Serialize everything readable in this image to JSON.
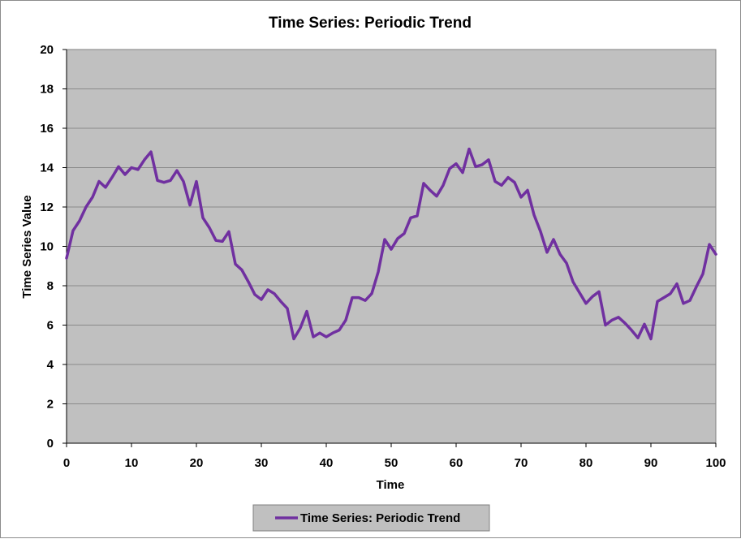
{
  "chart_data": {
    "type": "line",
    "title": "Time Series: Periodic Trend",
    "xlabel": "Time",
    "ylabel": "Time Series Value",
    "xlim": [
      0,
      100
    ],
    "ylim": [
      0,
      20
    ],
    "x_ticks": [
      0,
      10,
      20,
      30,
      40,
      50,
      60,
      70,
      80,
      90,
      100
    ],
    "y_ticks": [
      0,
      2,
      4,
      6,
      8,
      10,
      12,
      14,
      16,
      18,
      20
    ],
    "grid": "horizontal",
    "plot_background": "#c0c0c0",
    "legend_position": "bottom",
    "series": [
      {
        "name": "Time Series: Periodic Trend",
        "color": "#7030a0",
        "x": [
          0,
          1,
          2,
          3,
          4,
          5,
          6,
          7,
          8,
          9,
          10,
          11,
          12,
          13,
          14,
          15,
          16,
          17,
          18,
          19,
          20,
          21,
          22,
          23,
          24,
          25,
          26,
          27,
          28,
          29,
          30,
          31,
          32,
          33,
          34,
          35,
          36,
          37,
          38,
          39,
          40,
          41,
          42,
          43,
          44,
          45,
          46,
          47,
          48,
          49,
          50,
          51,
          52,
          53,
          54,
          55,
          56,
          57,
          58,
          59,
          60,
          61,
          62,
          63,
          64,
          65,
          66,
          67,
          68,
          69,
          70,
          71,
          72,
          73,
          74,
          75,
          76,
          77,
          78,
          79,
          80,
          81,
          82,
          83,
          84,
          85,
          86,
          87,
          88,
          89,
          90,
          91,
          92,
          93,
          94,
          95,
          96,
          97,
          98,
          99,
          100
        ],
        "values": [
          9.4,
          10.8,
          11.3,
          12.0,
          12.5,
          13.3,
          13.0,
          13.5,
          14.05,
          13.65,
          14.0,
          13.9,
          14.4,
          14.8,
          13.35,
          13.25,
          13.35,
          13.85,
          13.3,
          12.1,
          13.3,
          11.45,
          10.95,
          10.3,
          10.25,
          10.75,
          9.1,
          8.8,
          8.2,
          7.55,
          7.3,
          7.8,
          7.6,
          7.2,
          6.85,
          5.3,
          5.85,
          6.7,
          5.4,
          5.6,
          5.4,
          5.6,
          5.75,
          6.25,
          7.4,
          7.4,
          7.25,
          7.6,
          8.7,
          10.35,
          9.85,
          10.4,
          10.65,
          11.45,
          11.55,
          13.2,
          12.85,
          12.55,
          13.1,
          13.95,
          14.2,
          13.75,
          14.95,
          14.05,
          14.15,
          14.4,
          13.3,
          13.1,
          13.5,
          13.25,
          12.5,
          12.85,
          11.6,
          10.75,
          9.7,
          10.35,
          9.6,
          9.15,
          8.2,
          7.65,
          7.1,
          7.45,
          7.7,
          6.0,
          6.25,
          6.4,
          6.1,
          5.75,
          5.35,
          6.05,
          5.3,
          7.2,
          7.4,
          7.6,
          8.1,
          7.1,
          7.25,
          7.95,
          8.6,
          10.1,
          9.6
        ]
      }
    ]
  }
}
